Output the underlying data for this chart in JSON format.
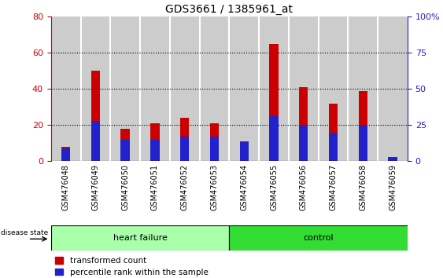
{
  "title": "GDS3661 / 1385961_at",
  "categories": [
    "GSM476048",
    "GSM476049",
    "GSM476050",
    "GSM476051",
    "GSM476052",
    "GSM476053",
    "GSM476054",
    "GSM476055",
    "GSM476056",
    "GSM476057",
    "GSM476058",
    "GSM476059"
  ],
  "red_values": [
    8,
    50,
    18,
    21,
    24,
    21,
    11,
    65,
    41,
    32,
    39,
    1
  ],
  "blue_values": [
    9,
    28,
    15,
    15,
    17,
    17,
    13,
    31,
    25,
    20,
    25,
    3
  ],
  "left_ylim": [
    0,
    80
  ],
  "right_ylim": [
    0,
    100
  ],
  "left_yticks": [
    0,
    20,
    40,
    60,
    80
  ],
  "right_yticks": [
    0,
    25,
    50,
    75,
    100
  ],
  "right_yticklabels": [
    "0",
    "25",
    "50",
    "75",
    "100%"
  ],
  "heart_failure_count": 6,
  "control_count": 6,
  "red_color": "#CC0000",
  "blue_color": "#2222CC",
  "hf_box_color": "#AAFFAA",
  "ctrl_box_color": "#33DD33",
  "bar_bg_color": "#CCCCCC",
  "legend_red_label": "transformed count",
  "legend_blue_label": "percentile rank within the sample",
  "disease_state_label": "disease state",
  "hf_label": "heart failure",
  "ctrl_label": "control"
}
